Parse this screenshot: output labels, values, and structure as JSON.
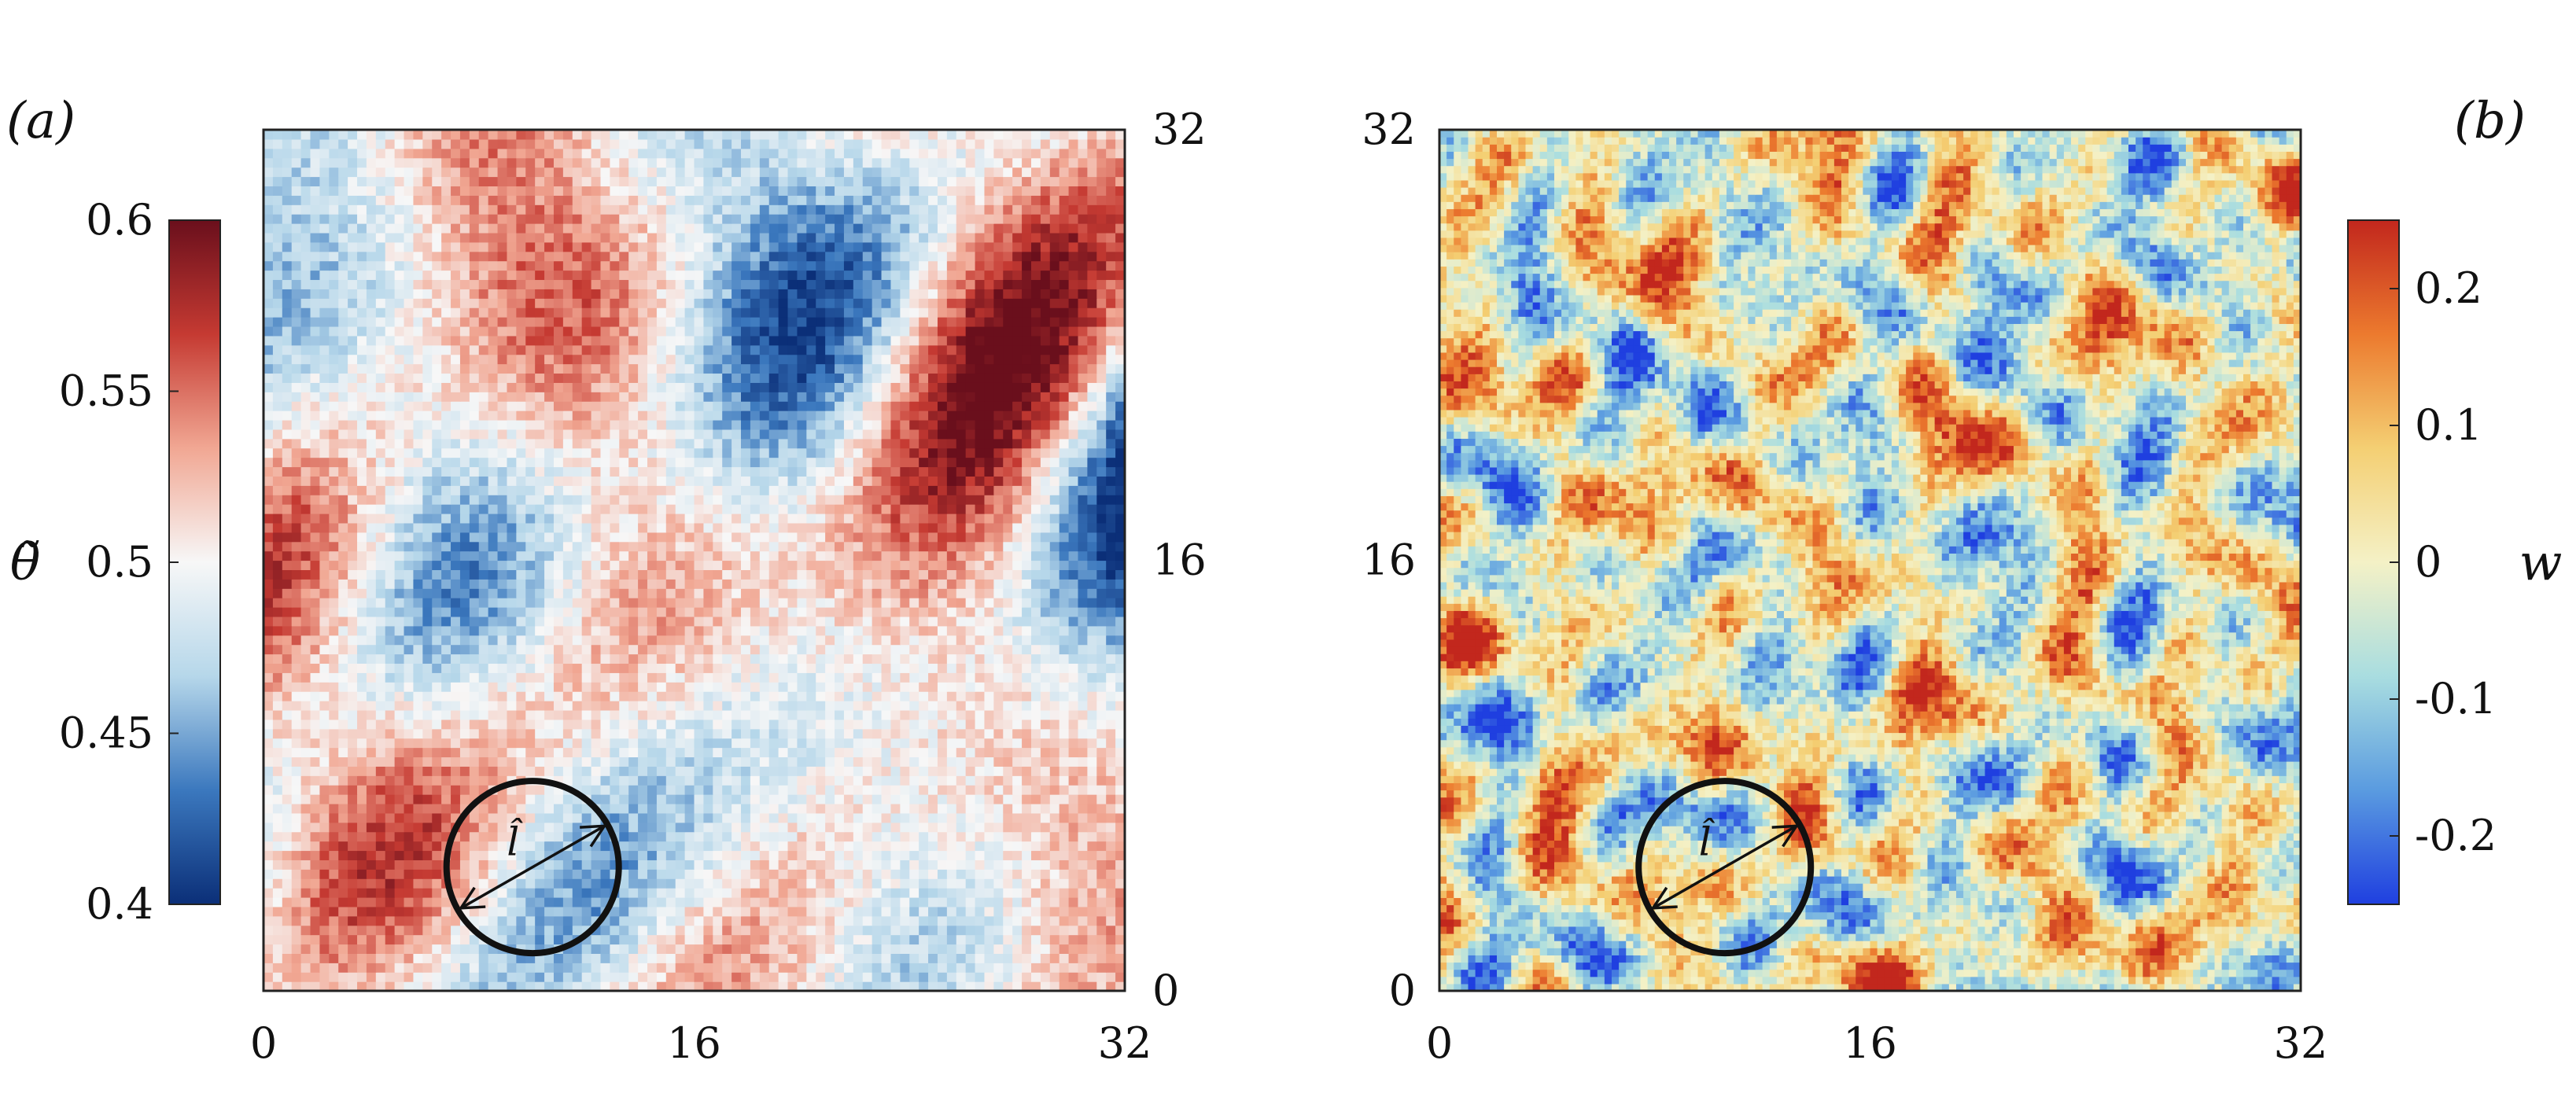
{
  "chart_data": [
    {
      "type": "heatmap",
      "panel_label": "(a)",
      "field": "temperature (theta tilde)",
      "colormap": "blue-white-red (diverging)",
      "colormap_colors": [
        "#0b2f78",
        "#3b78be",
        "#b6d7ea",
        "#f7f7f7",
        "#f1a793",
        "#c53a32",
        "#6a0f1c"
      ],
      "xlim": [
        0,
        32
      ],
      "ylim": [
        0,
        32
      ],
      "x_ticks": [
        "0",
        "16",
        "32"
      ],
      "y_ticks": [
        "0",
        "16",
        "32"
      ],
      "y_axis_side": "right",
      "colorbar": {
        "side": "left",
        "label": "θ̃",
        "range": [
          0.4,
          0.6
        ],
        "ticks": [
          "0.4",
          "0.45",
          "0.5",
          "0.55",
          "0.6"
        ]
      },
      "annotation": {
        "label": "l̂",
        "type": "circle with double-headed arrow diameter",
        "center": [
          10,
          4.6
        ],
        "radius": 3.2
      },
      "grid": false
    },
    {
      "type": "heatmap",
      "panel_label": "(b)",
      "field": "vertical velocity (w)",
      "colormap": "blue-yellow-red (jet-like)",
      "colormap_colors": [
        "#1f3fe0",
        "#5a9be0",
        "#a9dde0",
        "#f4f1c6",
        "#f4cf73",
        "#ec7a2e",
        "#c2271d"
      ],
      "xlim": [
        0,
        32
      ],
      "ylim": [
        0,
        32
      ],
      "x_ticks": [
        "0",
        "16",
        "32"
      ],
      "y_ticks": [
        "0",
        "16",
        "32"
      ],
      "y_axis_side": "left",
      "colorbar": {
        "side": "right",
        "label": "w",
        "range": [
          -0.25,
          0.25
        ],
        "ticks": [
          "-0.2",
          "-0.1",
          "0",
          "0.1",
          "0.2"
        ]
      },
      "annotation": {
        "label": "l̂",
        "type": "circle with double-headed arrow diameter",
        "center": [
          10.6,
          4.6
        ],
        "radius": 3.2
      },
      "grid": false
    }
  ]
}
